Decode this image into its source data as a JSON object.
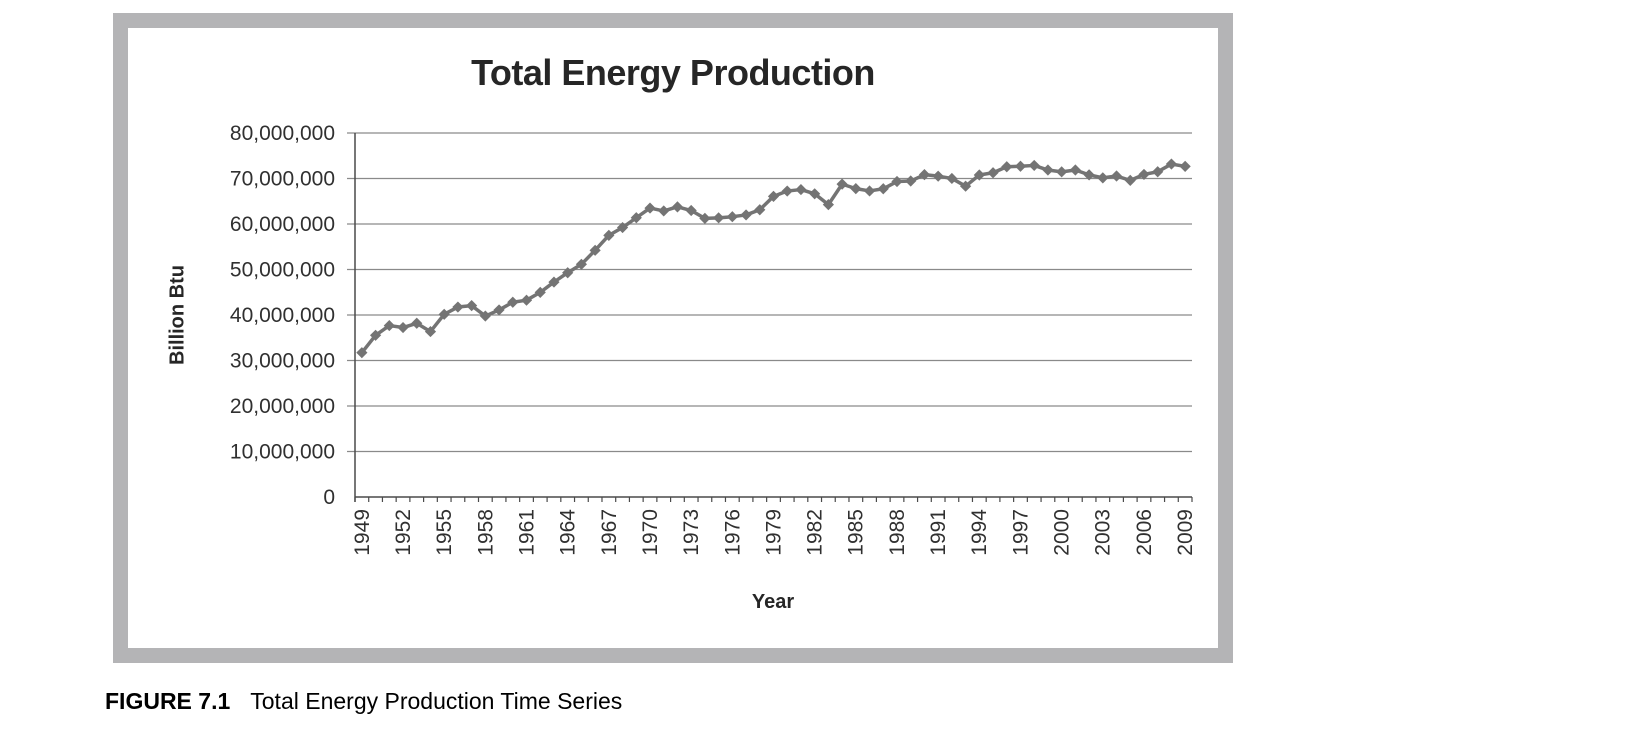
{
  "figure": {
    "caption_label": "FIGURE 7.1",
    "caption_text": "Total Energy Production Time Series"
  },
  "chart_data": {
    "type": "line",
    "title": "Total Energy Production",
    "xlabel": "Year",
    "ylabel": "Billion Btu",
    "ylim": [
      0,
      80000000
    ],
    "y_tick_step": 10000000,
    "grid": true,
    "legend": "none",
    "marker": "diamond",
    "x_tick_interval": 3,
    "x_tick_labels": [
      "1949",
      "1952",
      "1955",
      "1958",
      "1961",
      "1964",
      "1967",
      "1970",
      "1973",
      "1976",
      "1979",
      "1982",
      "1985",
      "1988",
      "1991",
      "1994",
      "1997",
      "2000",
      "2003",
      "2006",
      "2009"
    ],
    "y_tick_labels": [
      "0",
      "10,000,000",
      "20,000,000",
      "30,000,000",
      "40,000,000",
      "50,000,000",
      "60,000,000",
      "70,000,000",
      "80,000,000"
    ],
    "series": [
      {
        "name": "Total Energy Production",
        "x": [
          1949,
          1950,
          1951,
          1952,
          1953,
          1954,
          1955,
          1956,
          1957,
          1958,
          1959,
          1960,
          1961,
          1962,
          1963,
          1964,
          1965,
          1966,
          1967,
          1968,
          1969,
          1970,
          1971,
          1972,
          1973,
          1974,
          1975,
          1976,
          1977,
          1978,
          1979,
          1980,
          1981,
          1982,
          1983,
          1984,
          1985,
          1986,
          1987,
          1988,
          1989,
          1990,
          1991,
          1992,
          1993,
          1994,
          1995,
          1996,
          1997,
          1998,
          1999,
          2000,
          2001,
          2002,
          2003,
          2004,
          2005,
          2006,
          2007,
          2008,
          2009
        ],
        "values": [
          31722000,
          35540000,
          37675000,
          37244000,
          38181000,
          36357000,
          40148000,
          41749000,
          42067000,
          39770000,
          41118000,
          42804000,
          43254000,
          44969000,
          47235000,
          49290000,
          51145000,
          54216000,
          57504000,
          59222000,
          61374000,
          63501000,
          62871000,
          63766000,
          62960000,
          61229000,
          61357000,
          61605000,
          61994000,
          63137000,
          66077000,
          67241000,
          67568000,
          66640000,
          64253000,
          68768000,
          67775000,
          67264000,
          67740000,
          69337000,
          69445000,
          70845000,
          70512000,
          70013000,
          68309000,
          70775000,
          71267000,
          72578000,
          72690000,
          72871000,
          71860000,
          71466000,
          71872000,
          70795000,
          70136000,
          70545000,
          69591000,
          70897000,
          71478000,
          73177000,
          72669000
        ]
      }
    ],
    "colors": {
      "series": "#747474",
      "gridline": "#8a8a8a",
      "axis": "#4a4a4a",
      "tick_text": "#303030",
      "title_text": "#262626",
      "frame_border": "#b4b4b6"
    }
  }
}
